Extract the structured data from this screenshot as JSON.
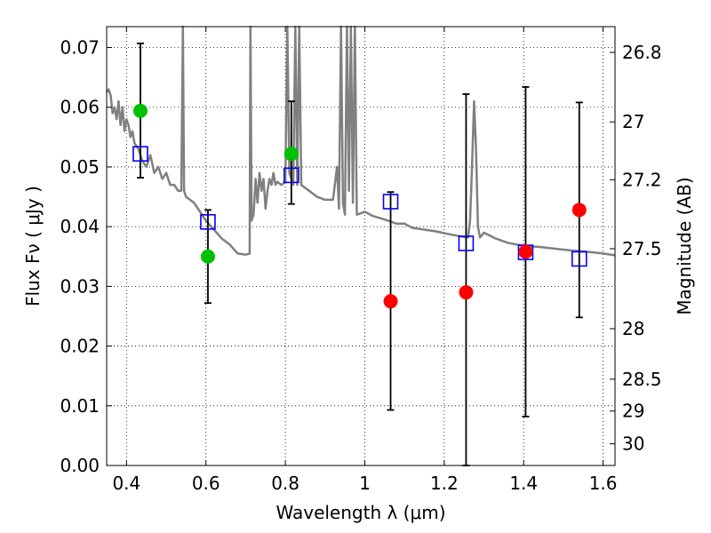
{
  "chart_data": {
    "type": "scatter",
    "xlabel": "Wavelength  λ (μm)",
    "ylabel": "Flux  Fν  ( μJy )",
    "y2label": "Magnitude (AB)",
    "xlim": [
      0.35,
      1.63
    ],
    "ylim": [
      0.0,
      0.0735
    ],
    "grid": true,
    "x_ticks": [
      0.4,
      0.6,
      0.8,
      1.0,
      1.2,
      1.4,
      1.6
    ],
    "x_tick_labels": [
      "0.4",
      "0.6",
      "0.8",
      "1",
      "1.2",
      "1.4",
      "1.6"
    ],
    "y_ticks": [
      0.0,
      0.01,
      0.02,
      0.03,
      0.04,
      0.05,
      0.06,
      0.07
    ],
    "y_tick_labels": [
      "0.00",
      "0.01",
      "0.02",
      "0.03",
      "0.04",
      "0.05",
      "0.06",
      "0.07"
    ],
    "mag_ticks": [
      26.8,
      27,
      27.2,
      27.5,
      28,
      28.5,
      29,
      30
    ],
    "mag_tick_labels": [
      "26.8",
      "27",
      "27.2",
      "27.5",
      "28",
      "28.5",
      "29",
      "30"
    ],
    "colors": {
      "model_line": "#808080",
      "green_points": "#00c000",
      "red_points": "#ff0000",
      "squares": "#0000ff",
      "errorbars": "#000000"
    },
    "series": [
      {
        "marker": "square",
        "x": [
          0.435,
          0.605,
          0.815,
          1.065,
          1.255,
          1.405,
          1.54
        ],
        "y": [
          0.0522,
          0.0408,
          0.0486,
          0.0442,
          0.0372,
          0.0357,
          0.0346
        ]
      },
      {
        "marker": "circle",
        "color_key": "green_points",
        "x": [
          0.435,
          0.605,
          0.815
        ],
        "y": [
          0.0594,
          0.035,
          0.0522
        ],
        "yerr_low": [
          0.0482,
          0.0272,
          0.0438
        ],
        "yerr_high": [
          0.0707,
          0.0428,
          0.061
        ]
      },
      {
        "marker": "circle",
        "color_key": "red_points",
        "x": [
          1.065,
          1.255,
          1.405,
          1.54
        ],
        "y": [
          0.0275,
          0.029,
          0.0358,
          0.0428
        ],
        "yerr_low": [
          0.0093,
          0.0,
          0.0082,
          0.0248
        ],
        "yerr_high": [
          0.0458,
          0.0622,
          0.0634,
          0.0608
        ]
      },
      {
        "type": "line",
        "color_key": "model_line",
        "x": [
          0.35,
          0.355,
          0.36,
          0.365,
          0.37,
          0.375,
          0.38,
          0.385,
          0.39,
          0.395,
          0.4,
          0.405,
          0.41,
          0.415,
          0.42,
          0.43,
          0.44,
          0.45,
          0.46,
          0.47,
          0.48,
          0.49,
          0.5,
          0.51,
          0.52,
          0.53,
          0.538,
          0.542,
          0.545,
          0.55,
          0.56,
          0.57,
          0.58,
          0.6,
          0.62,
          0.64,
          0.66,
          0.68,
          0.7,
          0.71,
          0.712,
          0.715,
          0.72,
          0.725,
          0.73,
          0.735,
          0.74,
          0.745,
          0.75,
          0.755,
          0.76,
          0.765,
          0.77,
          0.775,
          0.78,
          0.79,
          0.8,
          0.805,
          0.81,
          0.815,
          0.82,
          0.825,
          0.83,
          0.835,
          0.84,
          0.85,
          0.86,
          0.87,
          0.88,
          0.9,
          0.92,
          0.93,
          0.935,
          0.94,
          0.945,
          0.95,
          0.955,
          0.96,
          0.965,
          0.97,
          0.975,
          0.98,
          1.0,
          1.02,
          1.05,
          1.08,
          1.1,
          1.12,
          1.15,
          1.18,
          1.2,
          1.23,
          1.25,
          1.26,
          1.265,
          1.27,
          1.275,
          1.28,
          1.285,
          1.29,
          1.3,
          1.33,
          1.36,
          1.4,
          1.44,
          1.48,
          1.52,
          1.56,
          1.6,
          1.63
        ],
        "y": [
          0.0625,
          0.063,
          0.062,
          0.059,
          0.06,
          0.058,
          0.061,
          0.057,
          0.06,
          0.056,
          0.058,
          0.057,
          0.055,
          0.056,
          0.054,
          0.053,
          0.051,
          0.05,
          0.052,
          0.049,
          0.05,
          0.048,
          0.049,
          0.047,
          0.047,
          0.046,
          0.046,
          0.0735,
          0.046,
          0.045,
          0.0445,
          0.044,
          0.043,
          0.041,
          0.0395,
          0.038,
          0.037,
          0.0355,
          0.0353,
          0.0355,
          0.0735,
          0.041,
          0.042,
          0.048,
          0.044,
          0.049,
          0.046,
          0.048,
          0.043,
          0.046,
          0.048,
          0.047,
          0.049,
          0.047,
          0.0475,
          0.047,
          0.0475,
          0.0735,
          0.049,
          0.048,
          0.047,
          0.0735,
          0.047,
          0.0735,
          0.047,
          0.0465,
          0.046,
          0.0455,
          0.045,
          0.0445,
          0.0445,
          0.05,
          0.043,
          0.0735,
          0.044,
          0.042,
          0.0735,
          0.046,
          0.0735,
          0.044,
          0.0735,
          0.042,
          0.0425,
          0.0418,
          0.0412,
          0.0405,
          0.0405,
          0.0398,
          0.0395,
          0.0392,
          0.0389,
          0.0385,
          0.0383,
          0.0382,
          0.041,
          0.05,
          0.061,
          0.053,
          0.04,
          0.0382,
          0.039,
          0.038,
          0.0373,
          0.0368,
          0.0366,
          0.0363,
          0.036,
          0.0358,
          0.0355,
          0.0352
        ]
      }
    ]
  }
}
